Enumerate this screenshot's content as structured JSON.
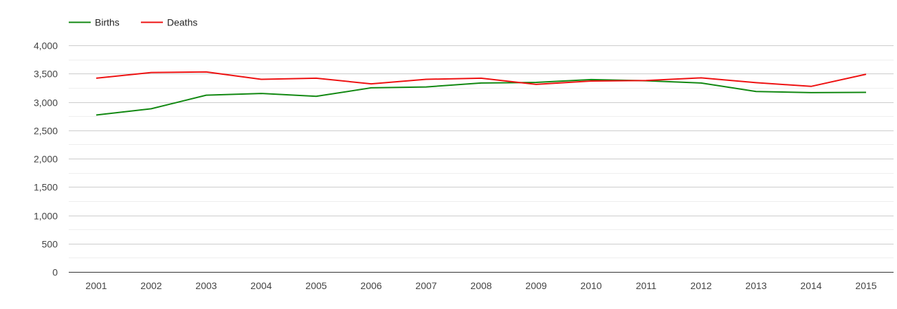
{
  "colors": {
    "background": "#ffffff",
    "grid_major": "#cccccc",
    "grid_minor": "#eeeeee",
    "axis": "#333333",
    "births": "#118811",
    "deaths": "#ee1111"
  },
  "chart_data": {
    "type": "line",
    "title": "",
    "xlabel": "",
    "ylabel": "",
    "x": [
      "2001",
      "2002",
      "2003",
      "2004",
      "2005",
      "2006",
      "2007",
      "2008",
      "2009",
      "2010",
      "2011",
      "2012",
      "2013",
      "2014",
      "2015"
    ],
    "ylim": [
      0,
      4000
    ],
    "yticks": [
      {
        "value": 0,
        "label": "0"
      },
      {
        "value": 500,
        "label": "500"
      },
      {
        "value": 1000,
        "label": "1,000"
      },
      {
        "value": 1500,
        "label": "1,500"
      },
      {
        "value": 2000,
        "label": "2,000"
      },
      {
        "value": 2500,
        "label": "2,500"
      },
      {
        "value": 3000,
        "label": "3,000"
      },
      {
        "value": 3500,
        "label": "3,500"
      },
      {
        "value": 4000,
        "label": "4,000"
      }
    ],
    "grid": true,
    "legend_position": "top-left",
    "series": [
      {
        "name": "Births",
        "color": "#118811",
        "values": [
          2770,
          2880,
          3120,
          3150,
          3100,
          3250,
          3265,
          3335,
          3345,
          3395,
          3375,
          3335,
          3185,
          3165,
          3170
        ]
      },
      {
        "name": "Deaths",
        "color": "#ee1111",
        "values": [
          3420,
          3520,
          3530,
          3400,
          3420,
          3320,
          3400,
          3420,
          3310,
          3370,
          3380,
          3425,
          3340,
          3275,
          3490
        ]
      }
    ]
  }
}
